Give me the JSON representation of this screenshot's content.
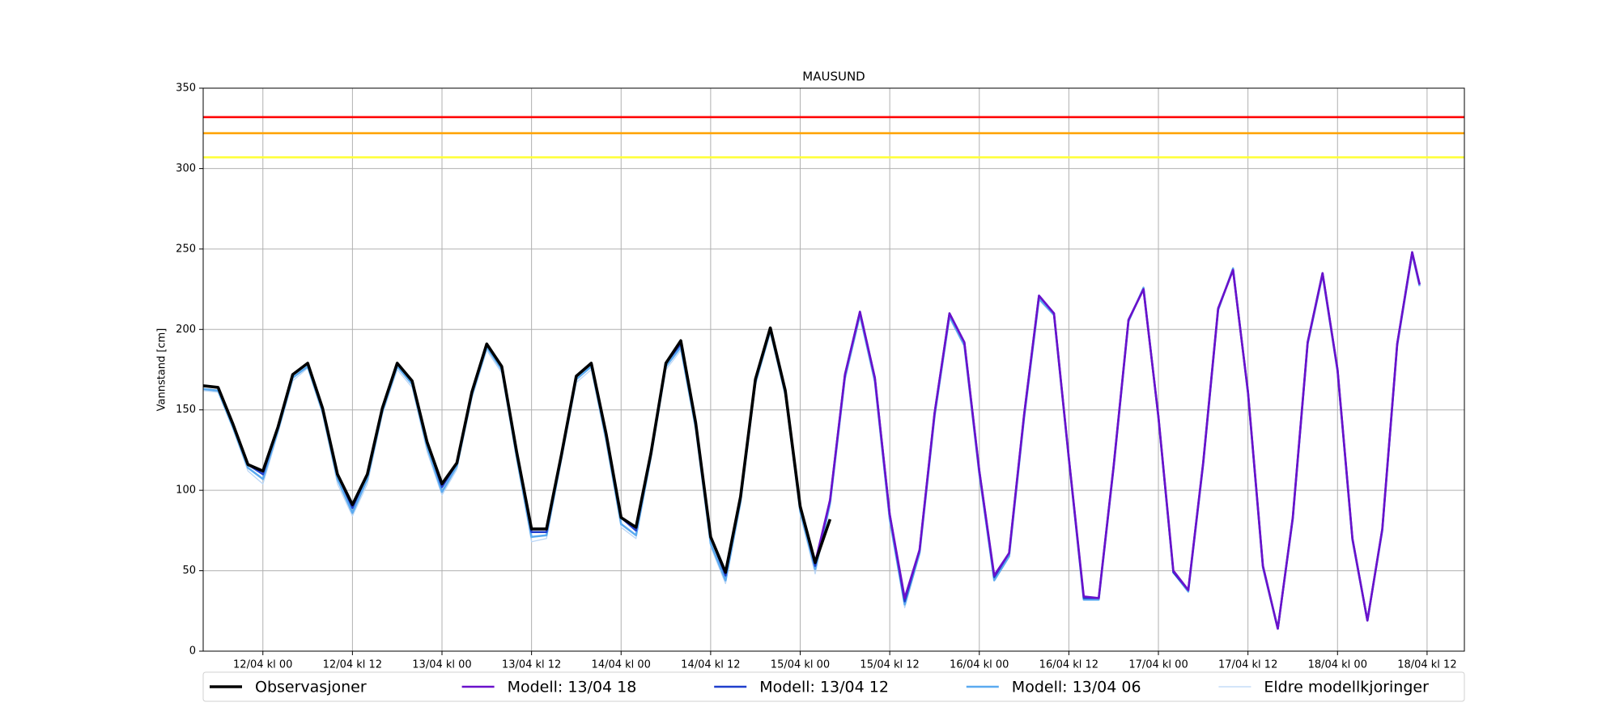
{
  "chart_data": {
    "type": "line",
    "title": "MAUSUND",
    "ylabel": "Vannstand [cm]",
    "x": [
      "11/04 kl 16",
      "11/04 kl 18",
      "11/04 kl 20",
      "11/04 kl 22",
      "12/04 kl 00",
      "12/04 kl 02",
      "12/04 kl 04",
      "12/04 kl 06",
      "12/04 kl 08",
      "12/04 kl 10",
      "12/04 kl 12",
      "12/04 kl 14",
      "12/04 kl 16",
      "12/04 kl 18",
      "12/04 kl 20",
      "12/04 kl 22",
      "13/04 kl 00",
      "13/04 kl 02",
      "13/04 kl 04",
      "13/04 kl 06",
      "13/04 kl 08",
      "13/04 kl 10",
      "13/04 kl 12",
      "13/04 kl 14",
      "13/04 kl 16",
      "13/04 kl 18",
      "13/04 kl 20",
      "13/04 kl 22",
      "14/04 kl 00",
      "14/04 kl 02",
      "14/04 kl 04",
      "14/04 kl 06",
      "14/04 kl 08",
      "14/04 kl 10",
      "14/04 kl 12",
      "14/04 kl 14",
      "14/04 kl 16",
      "14/04 kl 18",
      "14/04 kl 20",
      "14/04 kl 22",
      "15/04 kl 00",
      "15/04 kl 02",
      "15/04 kl 04",
      "15/04 kl 06",
      "15/04 kl 08",
      "15/04 kl 10",
      "15/04 kl 12",
      "15/04 kl 14",
      "15/04 kl 16",
      "15/04 kl 18",
      "15/04 kl 20",
      "15/04 kl 22",
      "16/04 kl 00",
      "16/04 kl 02",
      "16/04 kl 04",
      "16/04 kl 06",
      "16/04 kl 08",
      "16/04 kl 10",
      "16/04 kl 12",
      "16/04 kl 14",
      "16/04 kl 16",
      "16/04 kl 18",
      "16/04 kl 20",
      "16/04 kl 22",
      "17/04 kl 00",
      "17/04 kl 02",
      "17/04 kl 04",
      "17/04 kl 06",
      "17/04 kl 08",
      "17/04 kl 10",
      "17/04 kl 12",
      "17/04 kl 14",
      "17/04 kl 16",
      "17/04 kl 18",
      "17/04 kl 20",
      "17/04 kl 22",
      "18/04 kl 00",
      "18/04 kl 02",
      "18/04 kl 04",
      "18/04 kl 06",
      "18/04 kl 08",
      "18/04 kl 10",
      "18/04 kl 11"
    ],
    "series": [
      {
        "name": "Eldre modellkjoringer",
        "color": "#b9d5f5",
        "width": 1.3,
        "values": [
          162,
          161,
          138,
          112,
          104,
          135,
          168,
          176,
          147,
          104,
          84,
          104,
          147,
          175,
          164,
          124,
          97,
          113,
          157,
          187,
          173,
          119,
          68,
          70,
          118,
          167,
          175,
          129,
          77,
          70,
          119,
          175,
          187,
          137,
          65,
          42,
          91,
          165,
          198,
          158,
          85,
          48,
          90,
          168,
          208,
          166,
          80,
          27,
          60,
          null,
          null,
          null,
          null,
          null,
          null,
          null,
          null,
          null,
          null,
          null,
          null,
          null,
          null,
          null,
          null,
          null,
          null,
          null,
          null,
          null,
          null,
          null,
          null,
          null,
          null,
          null,
          null,
          null,
          null,
          null,
          null,
          null,
          null
        ]
      },
      {
        "name": "Modell: 13/04 06",
        "color": "#5aaaf0",
        "width": 2.5,
        "values": [
          163,
          162,
          139,
          114,
          107,
          137,
          170,
          177,
          149,
          107,
          86,
          107,
          149,
          177,
          166,
          127,
          99,
          115,
          159,
          189,
          175,
          121,
          71,
          72,
          120,
          169,
          177,
          132,
          79,
          72,
          121,
          177,
          189,
          139,
          67,
          44,
          93,
          167,
          199,
          160,
          87,
          51,
          92,
          170,
          209,
          168,
          82,
          29,
          61,
          146,
          208,
          190,
          110,
          44,
          59,
          145,
          219,
          209,
          119,
          32,
          32,
          114,
          205,
          226,
          145,
          49,
          37,
          116,
          212,
          238,
          160,
          52,
          14,
          82,
          191,
          234,
          174,
          69,
          19,
          75,
          190,
          247,
          227
        ]
      },
      {
        "name": "Modell: 13/04 12",
        "color": "#1f3fcc",
        "width": 2.5,
        "values": [
          165,
          164,
          141,
          116,
          110,
          139,
          172,
          179,
          151,
          110,
          89,
          110,
          151,
          179,
          168,
          130,
          102,
          117,
          161,
          191,
          177,
          124,
          74,
          74,
          122,
          171,
          179,
          135,
          83,
          75,
          123,
          179,
          191,
          142,
          71,
          47,
          96,
          169,
          201,
          162,
          90,
          53,
          94,
          172,
          211,
          170,
          85,
          31,
          63,
          148,
          210,
          192,
          112,
          46,
          61,
          147,
          221,
          210,
          120,
          33,
          33,
          115,
          206,
          225,
          146,
          49,
          38,
          117,
          213,
          237,
          161,
          53,
          14,
          83,
          192,
          235,
          175,
          70,
          19,
          76,
          191,
          248,
          228
        ]
      },
      {
        "name": "Modell: 13/04 18",
        "color": "#6a11cb",
        "width": 2.6,
        "values": [
          165,
          164,
          141,
          116,
          112,
          139,
          172,
          179,
          151,
          110,
          91,
          110,
          151,
          179,
          168,
          130,
          104,
          117,
          161,
          191,
          177,
          124,
          76,
          76,
          122,
          171,
          179,
          135,
          83,
          77,
          123,
          179,
          193,
          142,
          71,
          49,
          96,
          169,
          201,
          162,
          90,
          55,
          94,
          172,
          211,
          170,
          85,
          33,
          63,
          148,
          210,
          192,
          112,
          47,
          61,
          147,
          221,
          210,
          120,
          34,
          33,
          115,
          206,
          225,
          146,
          50,
          38,
          117,
          213,
          237,
          161,
          53,
          14,
          83,
          192,
          235,
          175,
          70,
          19,
          76,
          191,
          248,
          228
        ]
      },
      {
        "name": "Observasjoner",
        "color": "#000000",
        "width": 3.6,
        "values": [
          165,
          164,
          141,
          116,
          112,
          139,
          172,
          179,
          151,
          110,
          91,
          110,
          151,
          179,
          168,
          130,
          104,
          117,
          161,
          191,
          177,
          124,
          76,
          76,
          122,
          171,
          179,
          135,
          83,
          77,
          123,
          179,
          193,
          142,
          71,
          49,
          96,
          169,
          201,
          162,
          90,
          55,
          82,
          null,
          null,
          null,
          null,
          null,
          null,
          null,
          null,
          null,
          null,
          null,
          null,
          null,
          null,
          null,
          null,
          null,
          null,
          null,
          null,
          null,
          null,
          null,
          null,
          null,
          null,
          null,
          null,
          null,
          null,
          null,
          null,
          null,
          null,
          null,
          null,
          null,
          null,
          null,
          null
        ]
      }
    ],
    "legend_order": [
      4,
      3,
      2,
      1,
      0
    ],
    "hlines": [
      {
        "value": 332,
        "color": "#ff0000"
      },
      {
        "value": 322,
        "color": "#ffa500"
      },
      {
        "value": 307,
        "color": "#ffff33"
      }
    ],
    "xlim": [
      "11/04 kl 16",
      "18/04 kl 17"
    ],
    "xticks": [
      "12/04 kl 00",
      "12/04 kl 12",
      "13/04 kl 00",
      "13/04 kl 12",
      "14/04 kl 00",
      "14/04 kl 12",
      "15/04 kl 00",
      "15/04 kl 12",
      "16/04 kl 00",
      "16/04 kl 12",
      "17/04 kl 00",
      "17/04 kl 12",
      "18/04 kl 00",
      "18/04 kl 12"
    ],
    "ylim": [
      0,
      350
    ],
    "yticks": [
      0,
      50,
      100,
      150,
      200,
      250,
      300,
      350
    ],
    "grid": true,
    "legend": "bottom"
  }
}
